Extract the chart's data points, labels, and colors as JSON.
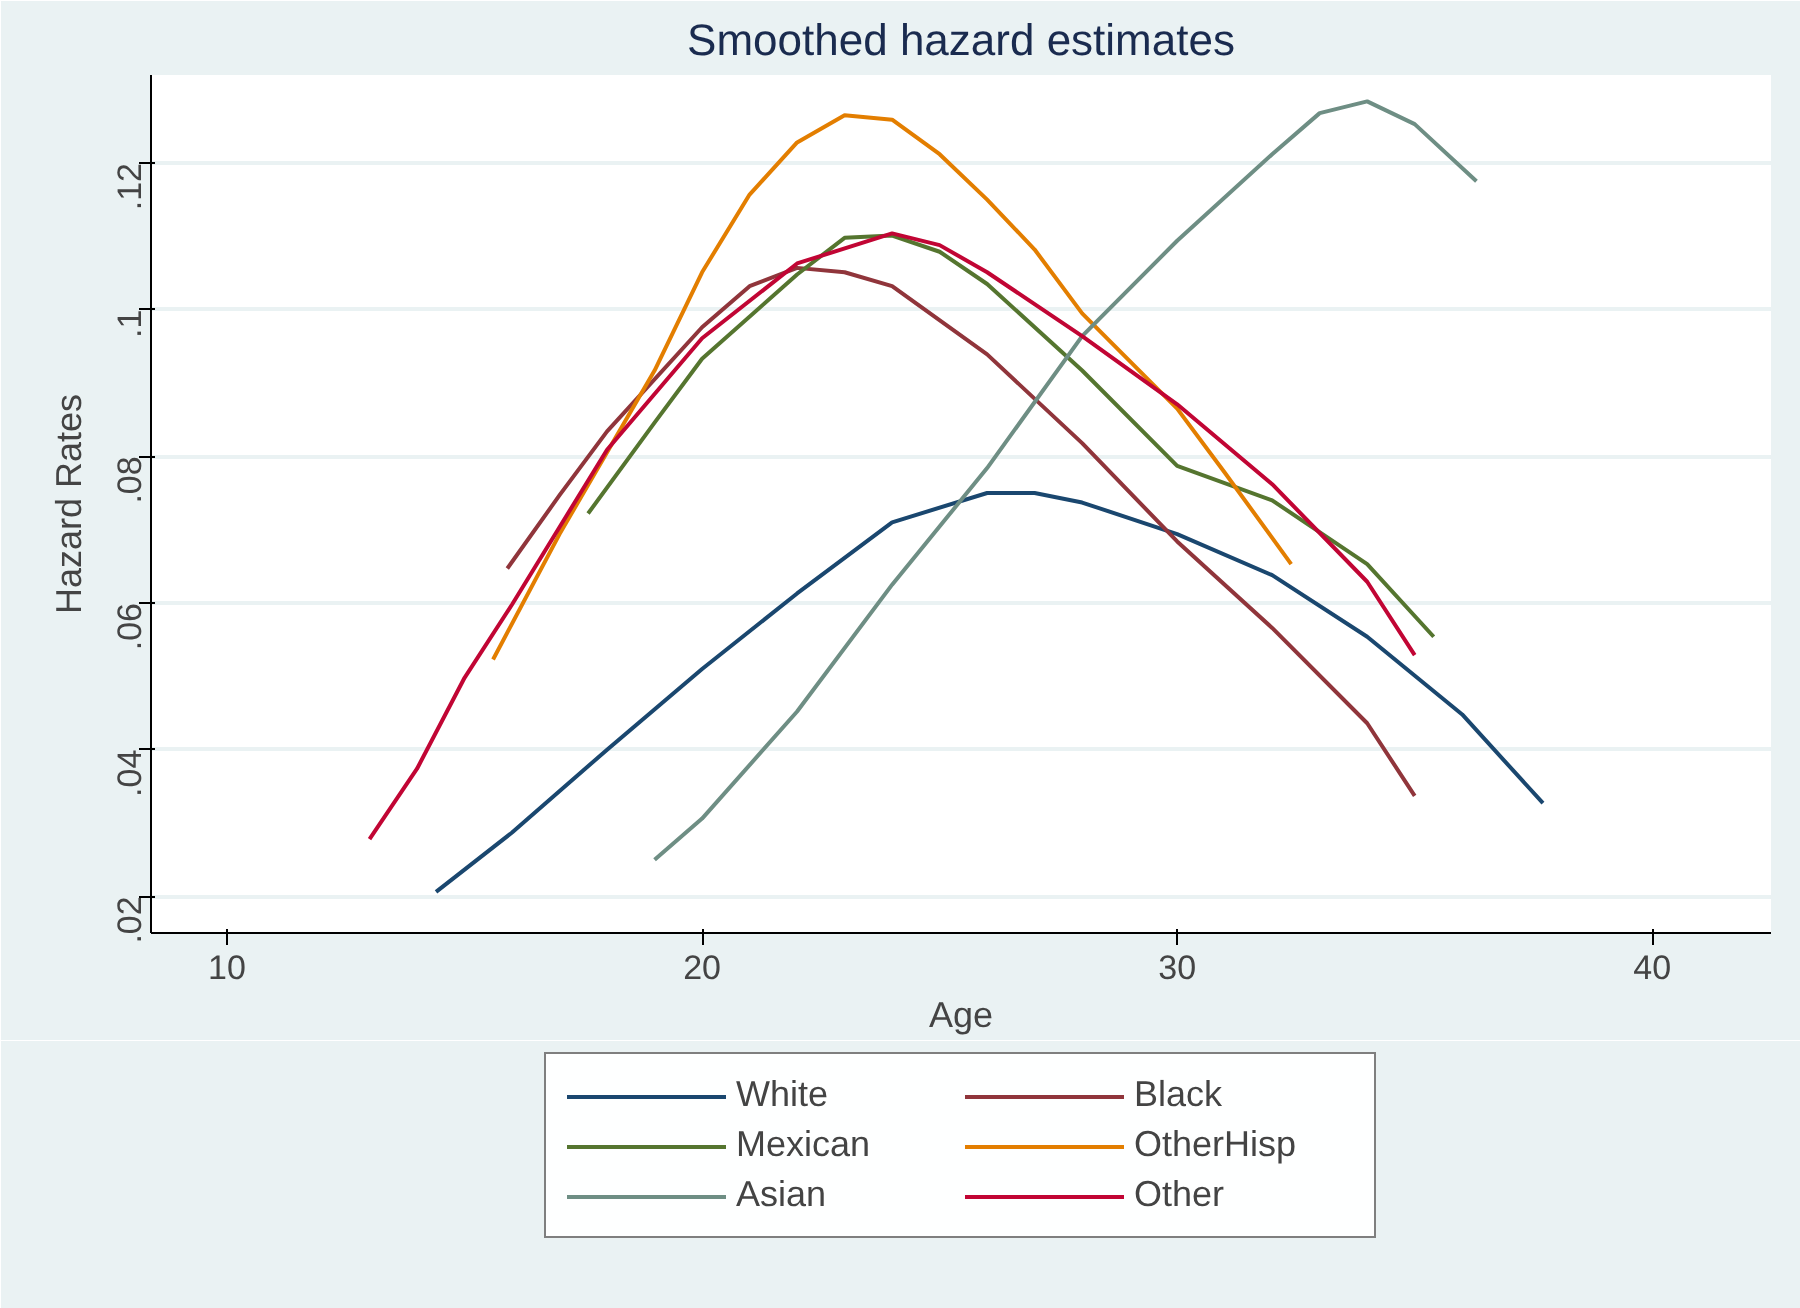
{
  "chart_data": {
    "type": "line",
    "title": "Smoothed hazard estimates",
    "xlabel": "Age",
    "ylabel": "Hazard Rates",
    "xlim": [
      8.4,
      42.5
    ],
    "ylim": [
      0.015,
      0.132
    ],
    "xticks": [
      10,
      20,
      30,
      40
    ],
    "yticks": [
      {
        "value": 0.02,
        "label": ".02"
      },
      {
        "value": 0.04,
        "label": ".04"
      },
      {
        "value": 0.06,
        "label": ".06"
      },
      {
        "value": 0.08,
        "label": ".08"
      },
      {
        "value": 0.1,
        "label": ".1"
      },
      {
        "value": 0.12,
        "label": ".12"
      }
    ],
    "grid": "y",
    "legend": "bottom",
    "line_style": "solid",
    "series": [
      {
        "name": "White",
        "color": "#1a476f",
        "x": [
          14.4,
          16,
          18,
          20,
          22,
          24,
          26,
          27,
          28,
          30,
          32,
          34,
          36,
          37.7
        ],
        "values": [
          0.0206,
          0.0287,
          0.04,
          0.051,
          0.0613,
          0.071,
          0.075,
          0.075,
          0.0737,
          0.0694,
          0.0638,
          0.0554,
          0.0448,
          0.0327
        ]
      },
      {
        "name": "Black",
        "color": "#90353b",
        "x": [
          15.9,
          17,
          18,
          20,
          21,
          22,
          23,
          24,
          26,
          28,
          30,
          32,
          34,
          35
        ],
        "values": [
          0.0647,
          0.0747,
          0.0834,
          0.0976,
          0.1032,
          0.1057,
          0.1051,
          0.1032,
          0.0939,
          0.0818,
          0.0684,
          0.0566,
          0.0436,
          0.0337
        ]
      },
      {
        "name": "Mexican",
        "color": "#55752f",
        "x": [
          17.6,
          19,
          20,
          22,
          23,
          24,
          25,
          26,
          28,
          30,
          32,
          34,
          35.4
        ],
        "values": [
          0.0722,
          0.0846,
          0.0933,
          0.1048,
          0.1098,
          0.1101,
          0.1079,
          0.1035,
          0.0917,
          0.0787,
          0.074,
          0.0653,
          0.0554
        ]
      },
      {
        "name": "OtherHisp",
        "color": "#e37e00",
        "x": [
          15.6,
          17,
          19,
          20,
          21,
          22,
          23,
          24,
          25,
          26,
          27,
          28,
          30,
          31,
          32.4
        ],
        "values": [
          0.0523,
          0.0694,
          0.0917,
          0.1051,
          0.1157,
          0.1228,
          0.1265,
          0.1259,
          0.1212,
          0.115,
          0.1082,
          0.0995,
          0.0865,
          0.0778,
          0.0653
        ]
      },
      {
        "name": "Asian",
        "color": "#6e8e84",
        "x": [
          19,
          20,
          22,
          24,
          26,
          28,
          30,
          32,
          33,
          34,
          35,
          36.3
        ],
        "values": [
          0.025,
          0.0306,
          0.0452,
          0.0625,
          0.0784,
          0.0964,
          0.1094,
          0.1212,
          0.1268,
          0.1284,
          0.1253,
          0.1175
        ]
      },
      {
        "name": "Other",
        "color": "#c10534",
        "x": [
          13,
          14,
          15,
          16,
          18,
          20,
          22,
          24,
          25,
          26,
          28,
          30,
          32,
          34,
          35
        ],
        "values": [
          0.0278,
          0.0374,
          0.0498,
          0.0598,
          0.0809,
          0.0961,
          0.1063,
          0.1104,
          0.1088,
          0.1051,
          0.0964,
          0.0871,
          0.0762,
          0.0629,
          0.0529
        ]
      }
    ]
  }
}
